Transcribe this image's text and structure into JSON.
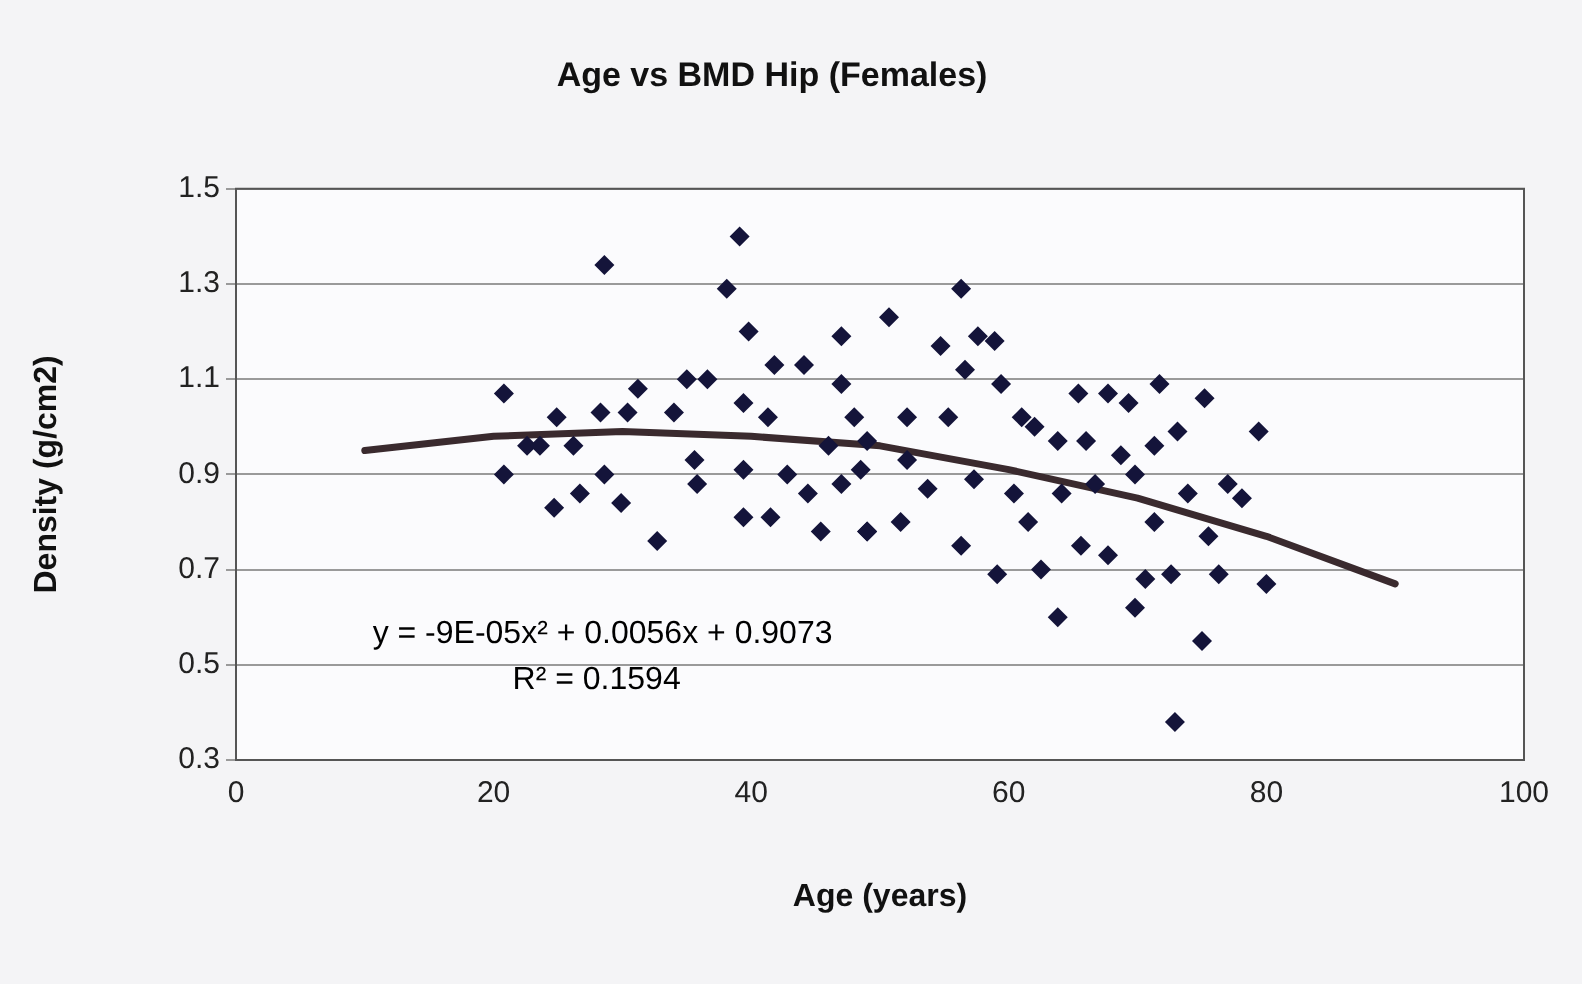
{
  "chart_data": {
    "type": "scatter",
    "title": "Age vs BMD Hip (Females)",
    "xlabel": "Age (years)",
    "ylabel": "Density (g/cm2)",
    "xlim": [
      0,
      100
    ],
    "xticks": [
      0,
      20,
      40,
      60,
      80,
      100
    ],
    "ylim": [
      0.3,
      1.5
    ],
    "yticks": [
      0.3,
      0.5,
      0.7,
      0.9,
      1.1,
      1.3,
      1.5
    ],
    "grid": "y",
    "legend": false,
    "marker": "diamond",
    "annotations": [
      "y = -9E-05x² + 0.0056x + 0.9073",
      "R² = 0.1594"
    ],
    "series": [
      {
        "type": "scatter",
        "color": "#14143a",
        "x": [
          20.8,
          20.8,
          24.9,
          28.3,
          30.4,
          31.2,
          28.6,
          24.7,
          26.7,
          28.6,
          29.9,
          32.7,
          34.0,
          35.0,
          36.6,
          35.6,
          35.8,
          38.1,
          39.1,
          39.8,
          39.4,
          39.4,
          39.4,
          41.5,
          41.8,
          44.1,
          41.3,
          42.8,
          45.4,
          44.4,
          47,
          49,
          22.6,
          23.6,
          26.2,
          47,
          46,
          48,
          47,
          56.3,
          50.7,
          54.7,
          57.6,
          58.9,
          56.6,
          59.4,
          65.4,
          67.7,
          69.3,
          71.7,
          75.2,
          79.4,
          52.1,
          55.3,
          61,
          62,
          63.8,
          66,
          68.7,
          71.3,
          73.1,
          48.5,
          53.7,
          57.3,
          60.4,
          64.1,
          66.7,
          69.8,
          73.9,
          77,
          78.1,
          49,
          51.6,
          56.3,
          59.1,
          62.5,
          61.5,
          65.6,
          67.7,
          70.6,
          72.6,
          69.8,
          63.8,
          75.5,
          76.3,
          80,
          75,
          72.9,
          71.3,
          49,
          52.1
        ],
        "values": [
          1.07,
          0.9,
          1.02,
          1.03,
          1.03,
          1.08,
          1.34,
          0.83,
          0.86,
          0.9,
          0.84,
          0.76,
          1.03,
          1.1,
          1.1,
          0.93,
          0.88,
          1.29,
          1.4,
          1.2,
          1.05,
          0.91,
          0.81,
          0.81,
          1.13,
          1.13,
          1.02,
          0.9,
          0.78,
          0.86,
          1.19,
          0.78,
          0.96,
          0.96,
          0.96,
          1.09,
          0.96,
          1.02,
          0.88,
          1.29,
          1.23,
          1.17,
          1.19,
          1.18,
          1.12,
          1.09,
          1.07,
          1.07,
          1.05,
          1.09,
          1.06,
          0.99,
          1.02,
          1.02,
          1.02,
          1.0,
          0.97,
          0.97,
          0.94,
          0.96,
          0.99,
          0.91,
          0.87,
          0.89,
          0.86,
          0.86,
          0.88,
          0.9,
          0.86,
          0.88,
          0.85,
          0.78,
          0.8,
          0.75,
          0.69,
          0.7,
          0.8,
          0.75,
          0.73,
          0.68,
          0.69,
          0.62,
          0.6,
          0.77,
          0.69,
          0.67,
          0.55,
          0.38,
          0.8,
          0.97,
          0.93
        ]
      },
      {
        "type": "line",
        "color": "#3a2a2e",
        "marker": "none",
        "x": [
          10,
          20,
          30,
          40,
          50,
          60,
          70,
          80,
          90
        ],
        "values": [
          0.95,
          0.98,
          0.99,
          0.98,
          0.96,
          0.91,
          0.85,
          0.77,
          0.67
        ]
      }
    ]
  }
}
